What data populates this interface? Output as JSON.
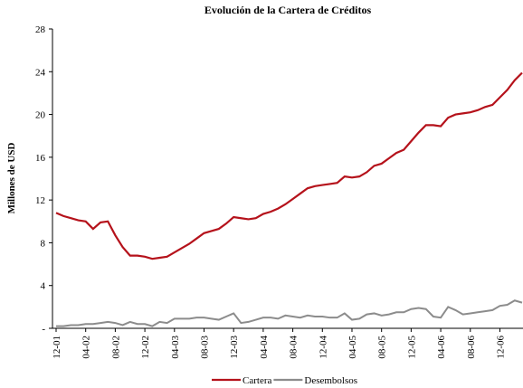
{
  "chart_data": {
    "type": "line",
    "title": "Evolución de la Cartera de Créditos",
    "y_label": "Millones de USD",
    "categories": [
      "12-01",
      null,
      null,
      null,
      "04-02",
      null,
      null,
      null,
      "08-02",
      null,
      null,
      null,
      "12-02",
      null,
      null,
      null,
      "04-03",
      null,
      null,
      null,
      "08-03",
      null,
      null,
      null,
      "12-03",
      null,
      null,
      null,
      "04-04",
      null,
      null,
      null,
      "08-04",
      null,
      null,
      null,
      "12-04",
      null,
      null,
      null,
      "04-05",
      null,
      null,
      null,
      "08-05",
      null,
      null,
      null,
      "12-05",
      null,
      null,
      null,
      "04-06",
      null,
      null,
      null,
      "08-06",
      null,
      null,
      null,
      "12-06",
      null,
      null,
      null
    ],
    "series": [
      {
        "name": "Cartera",
        "color": "#b5121b",
        "values": [
          10.8,
          10.5,
          10.3,
          10.1,
          10.0,
          9.3,
          9.9,
          10.0,
          8.7,
          7.6,
          6.8,
          6.8,
          6.7,
          6.5,
          6.6,
          6.7,
          7.1,
          7.5,
          7.9,
          8.4,
          8.9,
          9.1,
          9.3,
          9.8,
          10.4,
          10.3,
          10.2,
          10.3,
          10.7,
          10.9,
          11.2,
          11.6,
          12.1,
          12.6,
          13.1,
          13.3,
          13.4,
          13.5,
          13.6,
          14.2,
          14.1,
          14.2,
          14.6,
          15.2,
          15.4,
          15.9,
          16.4,
          16.7,
          17.5,
          18.3,
          19.0,
          19.0,
          18.9,
          19.7,
          20.0,
          20.1,
          20.2,
          20.4,
          20.7,
          20.9,
          21.6,
          22.3,
          23.2,
          23.9
        ]
      },
      {
        "name": "Desembolsos",
        "color": "#8c8c8c",
        "values": [
          0.2,
          0.2,
          0.3,
          0.3,
          0.4,
          0.4,
          0.5,
          0.6,
          0.5,
          0.3,
          0.6,
          0.4,
          0.4,
          0.2,
          0.6,
          0.5,
          0.9,
          0.9,
          0.9,
          1.0,
          1.0,
          0.9,
          0.8,
          1.1,
          1.4,
          0.5,
          0.6,
          0.8,
          1.0,
          1.0,
          0.9,
          1.2,
          1.1,
          1.0,
          1.2,
          1.1,
          1.1,
          1.0,
          1.0,
          1.4,
          0.8,
          0.9,
          1.3,
          1.4,
          1.2,
          1.3,
          1.5,
          1.5,
          1.8,
          1.9,
          1.8,
          1.1,
          1.0,
          2.0,
          1.7,
          1.3,
          1.4,
          1.5,
          1.6,
          1.7,
          2.1,
          2.2,
          2.6,
          2.4
        ]
      }
    ],
    "ylim": [
      0,
      28
    ],
    "yticks": [
      {
        "value": 0,
        "label": "-"
      },
      4,
      8,
      12,
      16,
      20,
      24,
      28
    ],
    "grid": false,
    "legend": "bottom"
  }
}
